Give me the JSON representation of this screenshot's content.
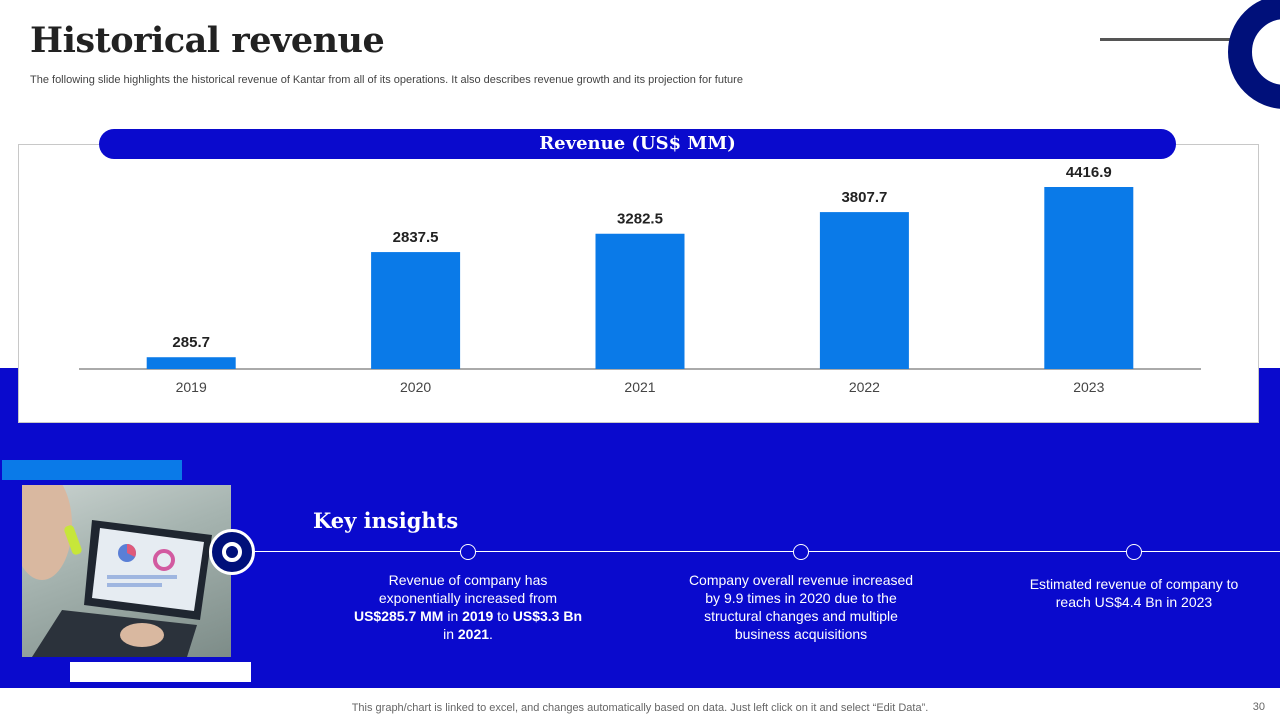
{
  "header": {
    "title": "Historical revenue",
    "subtitle": "The following slide highlights the historical revenue  of Kantar from all of its operations.  It also describes revenue  growth and its projection for future"
  },
  "chart_data": {
    "type": "bar",
    "title": "Revenue (US$ MM)",
    "categories": [
      "2019",
      "2020",
      "2021",
      "2022",
      "2023"
    ],
    "values": [
      285.7,
      2837.5,
      3282.5,
      3807.7,
      4416.9
    ],
    "value_labels": [
      "285.7",
      "2837.5",
      "3282.5",
      "3807.7",
      "4416.9"
    ],
    "xlabel": "",
    "ylabel": "",
    "ylim": [
      0,
      4800
    ],
    "grid": false,
    "bar_color": "#0a7ae8"
  },
  "insights": {
    "title": "Key insights",
    "items": [
      {
        "parts": [
          {
            "text": "Revenue of company has exponentially  increased from ",
            "bold": false
          },
          {
            "text": "US$285.7 MM",
            "bold": true
          },
          {
            "text": " in ",
            "bold": false
          },
          {
            "text": "2019",
            "bold": true
          },
          {
            "text": " to ",
            "bold": false
          },
          {
            "text": "US$3.3 Bn",
            "bold": true
          },
          {
            "text": " in ",
            "bold": false
          },
          {
            "text": "2021",
            "bold": true
          },
          {
            "text": ".",
            "bold": false
          }
        ]
      },
      {
        "text": "Company overall revenue increased by 9.9 times  in 2020 due to the structural  changes and multiple business acquisitions"
      },
      {
        "text": "Estimated revenue  of company to reach US$4.4 Bn in 2023"
      }
    ]
  },
  "footer": {
    "note": "This graph/chart is linked to excel,  and changes automatically based on data. Just left click on it and select “Edit Data”.",
    "page_number": "30"
  },
  "colors": {
    "primary_blue": "#0a0acd",
    "dark_navy": "#00107a",
    "bar_blue": "#0a7ae8"
  }
}
